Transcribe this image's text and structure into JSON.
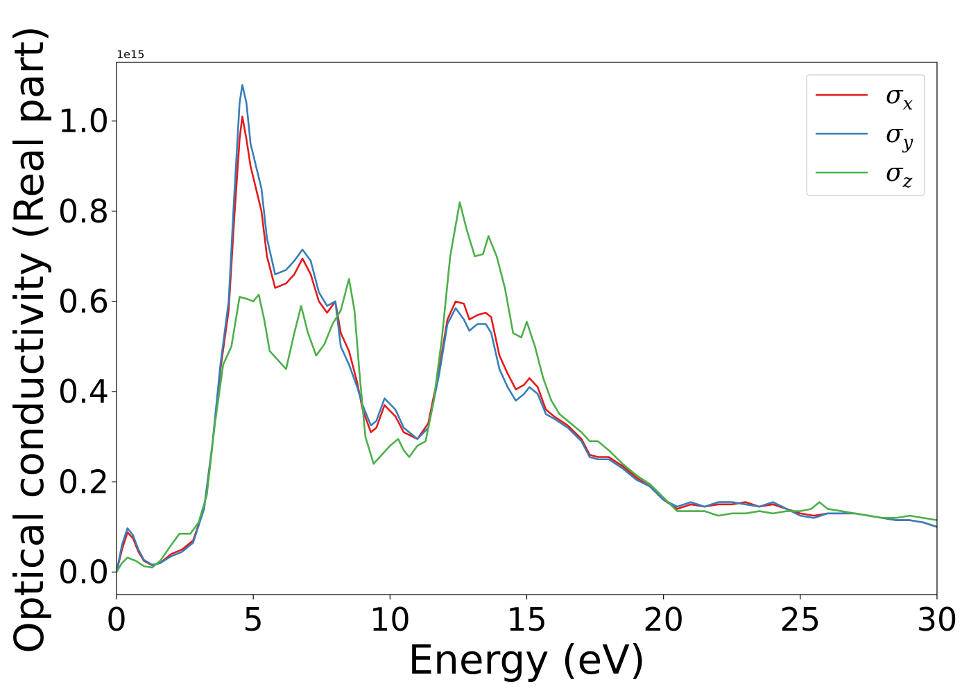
{
  "chart_data": {
    "type": "line",
    "title": "",
    "xlabel": "Energy (eV)",
    "ylabel": "Optical conductivity (Real part)",
    "y_offset_text": "1e15",
    "xlim": [
      0,
      30
    ],
    "ylim": [
      -0.05,
      1.13
    ],
    "xticks": [
      0,
      5,
      10,
      15,
      20,
      25,
      30
    ],
    "xtick_labels": [
      "0",
      "5",
      "10",
      "15",
      "20",
      "25",
      "30"
    ],
    "yticks": [
      0.0,
      0.2,
      0.4,
      0.6,
      0.8,
      1.0
    ],
    "ytick_labels": [
      "0.0",
      "0.2",
      "0.4",
      "0.6",
      "0.8",
      "1.0"
    ],
    "grid": false,
    "legend_position": "top-right",
    "series": [
      {
        "name": "σx",
        "base": "σ",
        "sub": "x",
        "color": "#e41a1c",
        "points": [
          [
            0,
            0
          ],
          [
            0.2,
            0.05
          ],
          [
            0.4,
            0.088
          ],
          [
            0.6,
            0.075
          ],
          [
            0.8,
            0.045
          ],
          [
            1.0,
            0.025
          ],
          [
            1.3,
            0.015
          ],
          [
            1.6,
            0.02
          ],
          [
            2.0,
            0.04
          ],
          [
            2.4,
            0.05
          ],
          [
            2.8,
            0.07
          ],
          [
            3.2,
            0.14
          ],
          [
            3.5,
            0.28
          ],
          [
            3.8,
            0.45
          ],
          [
            4.1,
            0.58
          ],
          [
            4.3,
            0.78
          ],
          [
            4.5,
            0.96
          ],
          [
            4.6,
            1.01
          ],
          [
            4.75,
            0.96
          ],
          [
            4.9,
            0.9
          ],
          [
            5.1,
            0.85
          ],
          [
            5.3,
            0.8
          ],
          [
            5.5,
            0.7
          ],
          [
            5.8,
            0.63
          ],
          [
            6.2,
            0.64
          ],
          [
            6.5,
            0.66
          ],
          [
            6.8,
            0.695
          ],
          [
            7.1,
            0.66
          ],
          [
            7.4,
            0.6
          ],
          [
            7.7,
            0.575
          ],
          [
            8.0,
            0.6
          ],
          [
            8.2,
            0.53
          ],
          [
            8.5,
            0.49
          ],
          [
            8.8,
            0.42
          ],
          [
            9.0,
            0.36
          ],
          [
            9.3,
            0.31
          ],
          [
            9.5,
            0.32
          ],
          [
            9.8,
            0.37
          ],
          [
            10.2,
            0.345
          ],
          [
            10.5,
            0.31
          ],
          [
            11.0,
            0.295
          ],
          [
            11.4,
            0.33
          ],
          [
            11.8,
            0.45
          ],
          [
            12.1,
            0.56
          ],
          [
            12.4,
            0.6
          ],
          [
            12.7,
            0.595
          ],
          [
            12.9,
            0.56
          ],
          [
            13.2,
            0.57
          ],
          [
            13.5,
            0.575
          ],
          [
            13.7,
            0.565
          ],
          [
            14.0,
            0.48
          ],
          [
            14.3,
            0.44
          ],
          [
            14.6,
            0.405
          ],
          [
            14.9,
            0.415
          ],
          [
            15.1,
            0.43
          ],
          [
            15.4,
            0.41
          ],
          [
            15.7,
            0.36
          ],
          [
            16.0,
            0.345
          ],
          [
            16.5,
            0.325
          ],
          [
            17.0,
            0.295
          ],
          [
            17.3,
            0.26
          ],
          [
            17.6,
            0.255
          ],
          [
            18.0,
            0.255
          ],
          [
            18.5,
            0.235
          ],
          [
            19.0,
            0.21
          ],
          [
            19.5,
            0.19
          ],
          [
            20.0,
            0.16
          ],
          [
            20.5,
            0.14
          ],
          [
            21.0,
            0.15
          ],
          [
            21.5,
            0.145
          ],
          [
            22.0,
            0.15
          ],
          [
            22.5,
            0.15
          ],
          [
            23.0,
            0.155
          ],
          [
            23.5,
            0.145
          ],
          [
            24.0,
            0.15
          ],
          [
            24.5,
            0.14
          ],
          [
            25.0,
            0.13
          ],
          [
            25.5,
            0.125
          ],
          [
            26.0,
            0.13
          ],
          [
            26.5,
            0.13
          ],
          [
            27.0,
            0.13
          ],
          [
            27.5,
            0.125
          ],
          [
            28.0,
            0.12
          ],
          [
            28.5,
            0.115
          ],
          [
            29.0,
            0.115
          ],
          [
            29.5,
            0.11
          ],
          [
            30.0,
            0.1
          ]
        ]
      },
      {
        "name": "σy",
        "base": "σ",
        "sub": "y",
        "color": "#377eb8",
        "points": [
          [
            0,
            0
          ],
          [
            0.2,
            0.06
          ],
          [
            0.4,
            0.097
          ],
          [
            0.6,
            0.082
          ],
          [
            0.8,
            0.05
          ],
          [
            1.0,
            0.027
          ],
          [
            1.3,
            0.016
          ],
          [
            1.6,
            0.02
          ],
          [
            2.0,
            0.035
          ],
          [
            2.4,
            0.045
          ],
          [
            2.8,
            0.065
          ],
          [
            3.2,
            0.14
          ],
          [
            3.5,
            0.28
          ],
          [
            3.8,
            0.46
          ],
          [
            4.1,
            0.6
          ],
          [
            4.3,
            0.83
          ],
          [
            4.5,
            1.04
          ],
          [
            4.6,
            1.08
          ],
          [
            4.75,
            1.04
          ],
          [
            4.9,
            0.95
          ],
          [
            5.1,
            0.9
          ],
          [
            5.3,
            0.85
          ],
          [
            5.5,
            0.74
          ],
          [
            5.8,
            0.66
          ],
          [
            6.2,
            0.67
          ],
          [
            6.5,
            0.69
          ],
          [
            6.8,
            0.715
          ],
          [
            7.1,
            0.69
          ],
          [
            7.4,
            0.62
          ],
          [
            7.7,
            0.59
          ],
          [
            8.0,
            0.6
          ],
          [
            8.2,
            0.5
          ],
          [
            8.5,
            0.46
          ],
          [
            8.8,
            0.41
          ],
          [
            9.0,
            0.37
          ],
          [
            9.3,
            0.325
          ],
          [
            9.5,
            0.335
          ],
          [
            9.8,
            0.385
          ],
          [
            10.2,
            0.36
          ],
          [
            10.5,
            0.32
          ],
          [
            11.0,
            0.295
          ],
          [
            11.4,
            0.32
          ],
          [
            11.8,
            0.44
          ],
          [
            12.1,
            0.55
          ],
          [
            12.4,
            0.585
          ],
          [
            12.7,
            0.56
          ],
          [
            12.9,
            0.535
          ],
          [
            13.2,
            0.55
          ],
          [
            13.5,
            0.55
          ],
          [
            13.7,
            0.53
          ],
          [
            14.0,
            0.45
          ],
          [
            14.3,
            0.41
          ],
          [
            14.6,
            0.38
          ],
          [
            14.9,
            0.395
          ],
          [
            15.1,
            0.41
          ],
          [
            15.4,
            0.395
          ],
          [
            15.7,
            0.35
          ],
          [
            16.0,
            0.34
          ],
          [
            16.5,
            0.32
          ],
          [
            17.0,
            0.29
          ],
          [
            17.3,
            0.255
          ],
          [
            17.6,
            0.25
          ],
          [
            18.0,
            0.25
          ],
          [
            18.5,
            0.23
          ],
          [
            19.0,
            0.205
          ],
          [
            19.5,
            0.19
          ],
          [
            20.0,
            0.16
          ],
          [
            20.5,
            0.145
          ],
          [
            21.0,
            0.155
          ],
          [
            21.5,
            0.145
          ],
          [
            22.0,
            0.155
          ],
          [
            22.5,
            0.155
          ],
          [
            23.0,
            0.15
          ],
          [
            23.5,
            0.145
          ],
          [
            24.0,
            0.155
          ],
          [
            24.5,
            0.14
          ],
          [
            25.0,
            0.125
          ],
          [
            25.5,
            0.12
          ],
          [
            26.0,
            0.13
          ],
          [
            26.5,
            0.13
          ],
          [
            27.0,
            0.13
          ],
          [
            27.5,
            0.125
          ],
          [
            28.0,
            0.12
          ],
          [
            28.5,
            0.115
          ],
          [
            29.0,
            0.115
          ],
          [
            29.5,
            0.11
          ],
          [
            30.0,
            0.1
          ]
        ]
      },
      {
        "name": "σz",
        "base": "σ",
        "sub": "z",
        "color": "#4daf4a",
        "points": [
          [
            0,
            0
          ],
          [
            0.2,
            0.02
          ],
          [
            0.4,
            0.032
          ],
          [
            0.7,
            0.025
          ],
          [
            1.0,
            0.013
          ],
          [
            1.3,
            0.01
          ],
          [
            1.6,
            0.025
          ],
          [
            2.0,
            0.06
          ],
          [
            2.3,
            0.085
          ],
          [
            2.7,
            0.085
          ],
          [
            3.0,
            0.11
          ],
          [
            3.3,
            0.17
          ],
          [
            3.6,
            0.33
          ],
          [
            3.9,
            0.46
          ],
          [
            4.2,
            0.5
          ],
          [
            4.5,
            0.61
          ],
          [
            4.8,
            0.605
          ],
          [
            5.0,
            0.6
          ],
          [
            5.2,
            0.615
          ],
          [
            5.4,
            0.56
          ],
          [
            5.6,
            0.49
          ],
          [
            5.9,
            0.47
          ],
          [
            6.2,
            0.45
          ],
          [
            6.5,
            0.53
          ],
          [
            6.75,
            0.59
          ],
          [
            7.0,
            0.53
          ],
          [
            7.3,
            0.48
          ],
          [
            7.6,
            0.505
          ],
          [
            7.9,
            0.55
          ],
          [
            8.2,
            0.58
          ],
          [
            8.5,
            0.65
          ],
          [
            8.7,
            0.58
          ],
          [
            8.9,
            0.43
          ],
          [
            9.1,
            0.3
          ],
          [
            9.4,
            0.24
          ],
          [
            9.7,
            0.26
          ],
          [
            10.0,
            0.28
          ],
          [
            10.3,
            0.295
          ],
          [
            10.5,
            0.27
          ],
          [
            10.7,
            0.255
          ],
          [
            11.0,
            0.28
          ],
          [
            11.3,
            0.29
          ],
          [
            11.6,
            0.38
          ],
          [
            11.9,
            0.52
          ],
          [
            12.2,
            0.7
          ],
          [
            12.55,
            0.82
          ],
          [
            12.8,
            0.76
          ],
          [
            13.1,
            0.7
          ],
          [
            13.4,
            0.705
          ],
          [
            13.6,
            0.745
          ],
          [
            13.9,
            0.7
          ],
          [
            14.2,
            0.63
          ],
          [
            14.5,
            0.53
          ],
          [
            14.8,
            0.52
          ],
          [
            15.0,
            0.555
          ],
          [
            15.3,
            0.5
          ],
          [
            15.6,
            0.43
          ],
          [
            15.9,
            0.38
          ],
          [
            16.2,
            0.35
          ],
          [
            16.6,
            0.33
          ],
          [
            17.0,
            0.31
          ],
          [
            17.3,
            0.29
          ],
          [
            17.6,
            0.29
          ],
          [
            18.0,
            0.27
          ],
          [
            18.5,
            0.24
          ],
          [
            19.0,
            0.215
          ],
          [
            19.5,
            0.195
          ],
          [
            20.0,
            0.165
          ],
          [
            20.5,
            0.135
          ],
          [
            21.0,
            0.135
          ],
          [
            21.5,
            0.135
          ],
          [
            22.0,
            0.125
          ],
          [
            22.5,
            0.13
          ],
          [
            23.0,
            0.13
          ],
          [
            23.5,
            0.135
          ],
          [
            24.0,
            0.13
          ],
          [
            24.5,
            0.135
          ],
          [
            25.0,
            0.135
          ],
          [
            25.4,
            0.14
          ],
          [
            25.7,
            0.155
          ],
          [
            26.0,
            0.14
          ],
          [
            26.5,
            0.135
          ],
          [
            27.0,
            0.13
          ],
          [
            27.5,
            0.125
          ],
          [
            28.0,
            0.12
          ],
          [
            28.5,
            0.12
          ],
          [
            29.0,
            0.125
          ],
          [
            29.5,
            0.12
          ],
          [
            30.0,
            0.115
          ]
        ]
      }
    ]
  }
}
